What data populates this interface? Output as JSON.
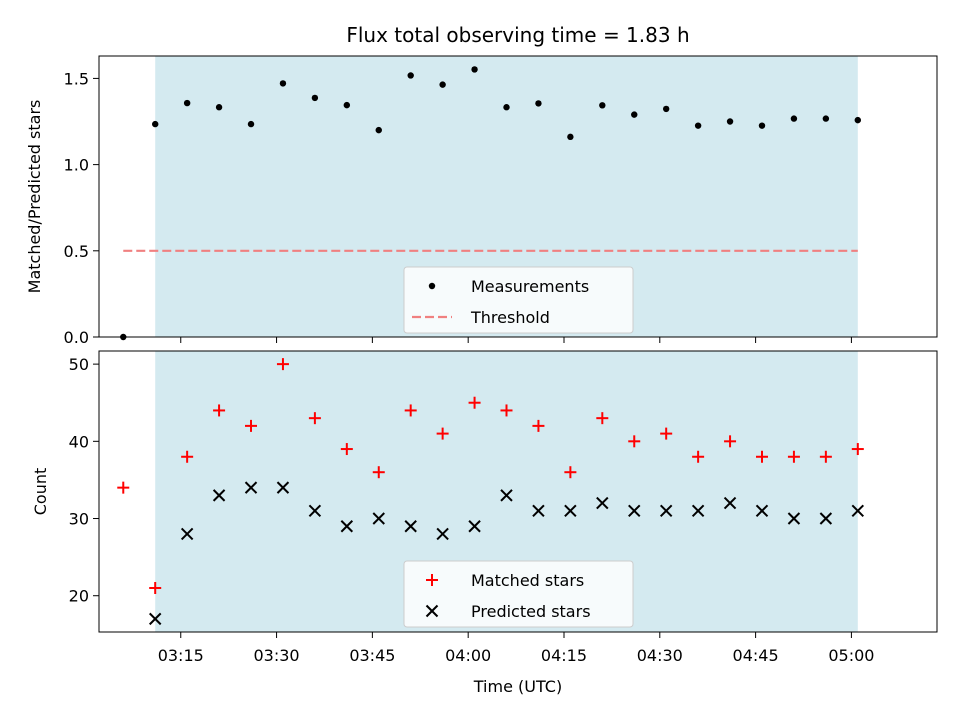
{
  "chart_data": {
    "title": "Flux total observing time = 1.83 h",
    "xlabel": "Time (UTC)",
    "x_ticks": [
      "03:15",
      "03:30",
      "03:45",
      "04:00",
      "04:15",
      "04:30",
      "04:45",
      "05:00"
    ],
    "observing_window": [
      "03:11",
      "05:01"
    ],
    "times": [
      "03:06",
      "03:11",
      "03:16",
      "03:21",
      "03:26",
      "03:31",
      "03:36",
      "03:41",
      "03:46",
      "03:51",
      "03:56",
      "04:01",
      "04:06",
      "04:11",
      "04:16",
      "04:21",
      "04:26",
      "04:31",
      "04:36",
      "04:41",
      "04:46",
      "04:51",
      "04:56",
      "05:01"
    ],
    "charts": [
      {
        "type": "scatter",
        "ylabel": "Matched/Predicted stars",
        "ylim": [
          0,
          1.63
        ],
        "y_ticks": [
          "0.0",
          "0.5",
          "1.0",
          "1.5"
        ],
        "legend_placement": "bottom-center",
        "series": [
          {
            "name": "Measurements",
            "marker": "dot",
            "color": "#000000",
            "values": [
              0.0,
              1.235,
              1.357,
              1.333,
              1.235,
              1.471,
              1.387,
              1.345,
              1.2,
              1.517,
              1.464,
              1.552,
              1.333,
              1.355,
              1.161,
              1.344,
              1.29,
              1.323,
              1.226,
              1.25,
              1.226,
              1.267,
              1.267,
              1.258
            ]
          },
          {
            "name": "Threshold",
            "marker": "dashed-line",
            "color": "#f08080",
            "value": 0.5,
            "x_range": [
              "03:06",
              "05:01"
            ]
          }
        ]
      },
      {
        "type": "scatter",
        "ylabel": "Count",
        "ylim": [
          15.3,
          51.7
        ],
        "y_ticks": [
          "20",
          "30",
          "40",
          "50"
        ],
        "legend_placement": "bottom-center",
        "series": [
          {
            "name": "Matched stars",
            "marker": "plus",
            "color": "#ff0000",
            "values": [
              34,
              21,
              38,
              44,
              42,
              50,
              43,
              39,
              36,
              44,
              41,
              45,
              44,
              42,
              36,
              43,
              40,
              41,
              38,
              40,
              38,
              38,
              38,
              39
            ]
          },
          {
            "name": "Predicted stars",
            "marker": "x",
            "color": "#000000",
            "values": [
              null,
              17,
              28,
              33,
              34,
              34,
              31,
              29,
              30,
              29,
              28,
              29,
              33,
              31,
              31,
              32,
              31,
              31,
              31,
              32,
              31,
              30,
              30,
              31
            ]
          }
        ]
      }
    ],
    "window_color": "#d4eaf0",
    "grid": false
  }
}
